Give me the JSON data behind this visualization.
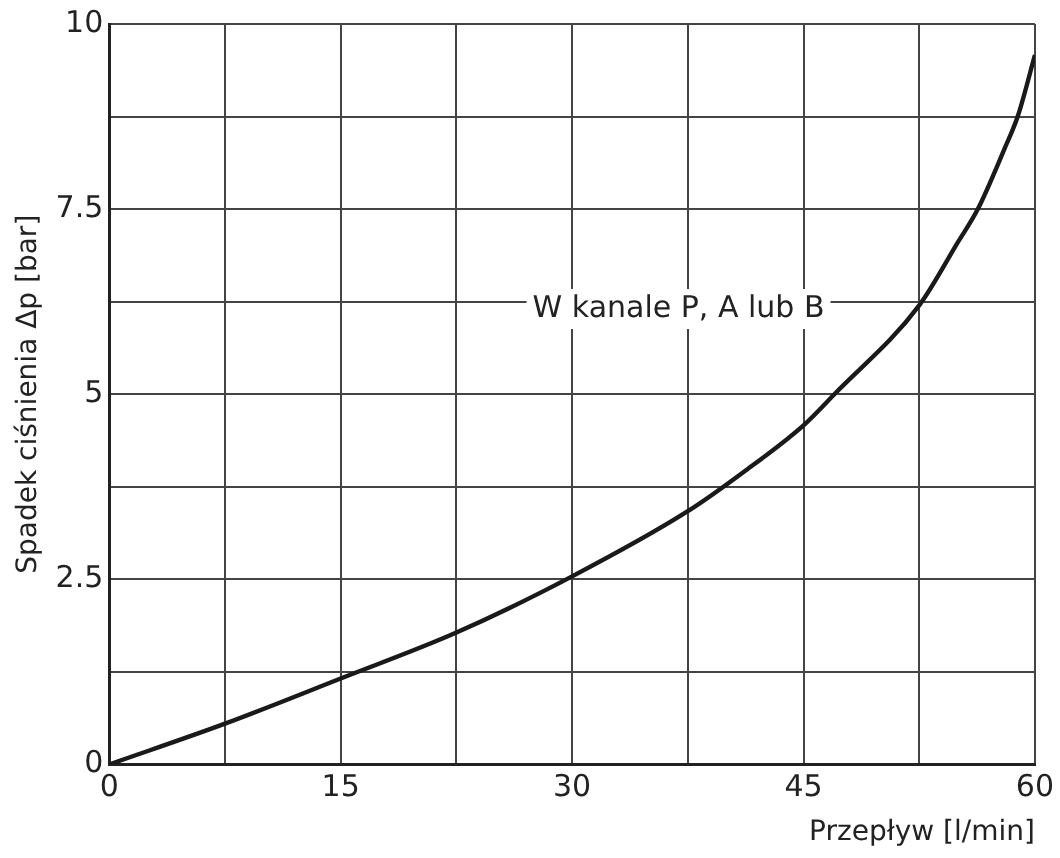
{
  "chart_data": {
    "type": "line",
    "xlabel": "Przepływ [l/min]",
    "ylabel": "Spadek ciśnienia Δp [bar]",
    "x": [
      0,
      7.5,
      15,
      22.5,
      30,
      37.5,
      41.25,
      45,
      47,
      52.5,
      55,
      56.3,
      58,
      58.9,
      60
    ],
    "series": [
      {
        "color": "#1a1a1a",
        "values": [
          0,
          0.55,
          1.16,
          1.78,
          2.54,
          3.42,
          3.97,
          4.58,
          5.0,
          6.2,
          7.05,
          7.5,
          8.3,
          8.76,
          9.58
        ]
      }
    ],
    "xlim": [
      0,
      60
    ],
    "ylim": [
      0,
      10
    ],
    "xticks": [
      0,
      {
        "value": 7.5,
        "label": null
      },
      15,
      {
        "value": 22.5,
        "label": null
      },
      30,
      {
        "value": 37.5,
        "label": null
      },
      45,
      {
        "value": 52.5,
        "label": null
      },
      60
    ],
    "yticks": [
      0,
      {
        "value": 1.25,
        "label": null
      },
      2.5,
      {
        "value": 3.75,
        "label": null
      },
      5,
      {
        "value": 6.25,
        "label": null
      },
      7.5,
      {
        "value": 8.75,
        "label": null
      },
      10
    ],
    "grid": true,
    "legend": false,
    "marker": "none",
    "line_style": "solid",
    "annotations": [
      "W kanale P, A lub B"
    ]
  }
}
